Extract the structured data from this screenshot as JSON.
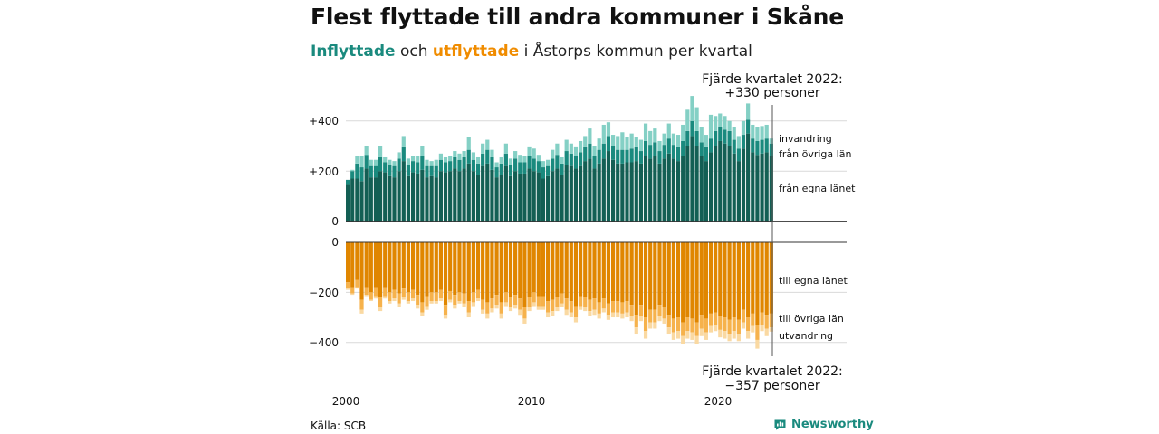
{
  "header": {
    "title": "Flest flyttade till andra kommuner i Skåne",
    "subtitle_in": "Inflyttade",
    "subtitle_mid": "och",
    "subtitle_out": "utflyttade",
    "subtitle_rest": "i Åstorps kommun per kvartal"
  },
  "footer": {
    "source": "Källa: SCB",
    "brand": "Newsworthy"
  },
  "colors": {
    "in_dark": "#135f54",
    "in_mid": "#1a8a7e",
    "in_light": "#84d0c5",
    "out_dark": "#e08600",
    "out_mid": "#f6b24c",
    "out_light": "#fad9a2"
  },
  "chart_data": {
    "type": "bar",
    "stacked": true,
    "period": "quarterly",
    "x_start": "2000 Q1",
    "x_end": "2022 Q4",
    "x_ticks": [
      "2000",
      "2010",
      "2020"
    ],
    "y_ticks_top": [
      "+400",
      "+200",
      "0"
    ],
    "y_ticks_bottom": [
      "0",
      "−200",
      "−400"
    ],
    "ylim_top": [
      0,
      480
    ],
    "ylim_bottom": [
      -460,
      0
    ],
    "grid": true,
    "annotation_top": [
      "Fjärde kvartalet 2022:",
      "+330 personer"
    ],
    "annotation_bottom": [
      "Fjärde kvartalet 2022:",
      "−357 personer"
    ],
    "inflow_series": [
      {
        "name": "från egna länet",
        "values": [
          145,
          170,
          170,
          160,
          210,
          175,
          175,
          200,
          195,
          180,
          175,
          200,
          240,
          180,
          195,
          190,
          205,
          175,
          180,
          175,
          200,
          195,
          200,
          210,
          200,
          210,
          230,
          200,
          185,
          220,
          230,
          205,
          175,
          185,
          220,
          180,
          200,
          190,
          190,
          210,
          200,
          195,
          170,
          180,
          200,
          210,
          185,
          225,
          220,
          210,
          220,
          240,
          250,
          210,
          230,
          250,
          280,
          245,
          230,
          230,
          235,
          235,
          240,
          230,
          260,
          250,
          260,
          230,
          250,
          270,
          250,
          240,
          260,
          300,
          340,
          300,
          260,
          240,
          275,
          300,
          320,
          310,
          300,
          270,
          240,
          290,
          350,
          275,
          265,
          270,
          275,
          260
        ]
      },
      {
        "name": "från övriga län",
        "values": [
          20,
          30,
          60,
          55,
          55,
          45,
          45,
          55,
          40,
          45,
          45,
          50,
          55,
          45,
          45,
          45,
          55,
          45,
          40,
          45,
          45,
          40,
          40,
          45,
          45,
          45,
          55,
          45,
          45,
          50,
          55,
          50,
          40,
          45,
          50,
          45,
          50,
          45,
          45,
          50,
          50,
          45,
          45,
          40,
          50,
          55,
          45,
          55,
          50,
          50,
          55,
          55,
          60,
          50,
          55,
          60,
          60,
          55,
          55,
          55,
          50,
          55,
          55,
          50,
          60,
          55,
          55,
          50,
          55,
          60,
          55,
          55,
          60,
          60,
          60,
          60,
          55,
          55,
          55,
          60,
          55,
          55,
          60,
          55,
          50,
          55,
          55,
          55,
          55,
          55,
          55,
          50
        ]
      },
      {
        "name": "invandring",
        "values": [
          0,
          5,
          30,
          45,
          35,
          25,
          25,
          45,
          20,
          20,
          20,
          25,
          45,
          25,
          20,
          25,
          40,
          25,
          20,
          25,
          25,
          20,
          20,
          25,
          25,
          25,
          50,
          30,
          25,
          40,
          40,
          30,
          20,
          25,
          40,
          25,
          30,
          30,
          25,
          35,
          40,
          25,
          25,
          25,
          35,
          45,
          25,
          45,
          40,
          35,
          45,
          45,
          60,
          40,
          45,
          75,
          55,
          45,
          55,
          70,
          50,
          60,
          40,
          45,
          70,
          55,
          55,
          40,
          45,
          60,
          45,
          50,
          65,
          85,
          100,
          95,
          60,
          50,
          95,
          60,
          55,
          55,
          40,
          50,
          50,
          55,
          65,
          55,
          55,
          55,
          55,
          20
        ]
      }
    ],
    "outflow_series": [
      {
        "name": "till egna länet",
        "values": [
          -160,
          -180,
          -150,
          -230,
          -180,
          -200,
          -180,
          -220,
          -180,
          -200,
          -190,
          -205,
          -185,
          -200,
          -190,
          -210,
          -240,
          -215,
          -200,
          -200,
          -190,
          -250,
          -195,
          -210,
          -200,
          -205,
          -235,
          -200,
          -190,
          -230,
          -240,
          -225,
          -210,
          -240,
          -200,
          -220,
          -210,
          -225,
          -260,
          -220,
          -200,
          -215,
          -215,
          -235,
          -230,
          -220,
          -205,
          -225,
          -235,
          -255,
          -215,
          -220,
          -230,
          -225,
          -240,
          -225,
          -245,
          -235,
          -235,
          -240,
          -235,
          -250,
          -290,
          -250,
          -300,
          -270,
          -270,
          -250,
          -260,
          -290,
          -305,
          -300,
          -320,
          -300,
          -305,
          -320,
          -290,
          -305,
          -285,
          -280,
          -295,
          -300,
          -310,
          -300,
          -310,
          -270,
          -300,
          -285,
          -330,
          -280,
          -290,
          -285
        ]
      },
      {
        "name": "till övriga län",
        "values": [
          -25,
          -25,
          -30,
          -40,
          -30,
          -30,
          -35,
          -40,
          -35,
          -35,
          -35,
          -40,
          -35,
          -35,
          -35,
          -40,
          -40,
          -40,
          -35,
          -35,
          -35,
          -40,
          -35,
          -40,
          -35,
          -40,
          -45,
          -40,
          -35,
          -40,
          -45,
          -40,
          -40,
          -45,
          -40,
          -40,
          -40,
          -45,
          -45,
          -40,
          -40,
          -40,
          -40,
          -45,
          -45,
          -40,
          -40,
          -45,
          -45,
          -45,
          -40,
          -40,
          -45,
          -45,
          -45,
          -40,
          -45,
          -45,
          -45,
          -45,
          -45,
          -45,
          -50,
          -45,
          -55,
          -50,
          -50,
          -45,
          -45,
          -50,
          -55,
          -55,
          -55,
          -55,
          -55,
          -55,
          -55,
          -55,
          -50,
          -50,
          -55,
          -55,
          -55,
          -55,
          -55,
          -50,
          -55,
          -50,
          -60,
          -50,
          -55,
          -55
        ]
      },
      {
        "name": "utvandring",
        "values": [
          -5,
          -5,
          -5,
          -15,
          -5,
          -5,
          -10,
          -15,
          -10,
          -10,
          -10,
          -15,
          -10,
          -10,
          -10,
          -15,
          -15,
          -15,
          -10,
          -10,
          -10,
          -15,
          -10,
          -15,
          -10,
          -15,
          -20,
          -15,
          -10,
          -15,
          -20,
          -15,
          -15,
          -20,
          -15,
          -15,
          -15,
          -20,
          -20,
          -15,
          -15,
          -15,
          -15,
          -20,
          -20,
          -15,
          -15,
          -20,
          -20,
          -20,
          -15,
          -15,
          -20,
          -20,
          -20,
          -15,
          -20,
          -20,
          -20,
          -20,
          -20,
          -20,
          -25,
          -20,
          -30,
          -25,
          -25,
          -20,
          -20,
          -25,
          -30,
          -30,
          -30,
          -30,
          -30,
          -30,
          -30,
          -30,
          -25,
          -25,
          -30,
          -30,
          -30,
          -30,
          -30,
          -25,
          -30,
          -25,
          -35,
          -25,
          -30,
          -17
        ]
      }
    ]
  }
}
